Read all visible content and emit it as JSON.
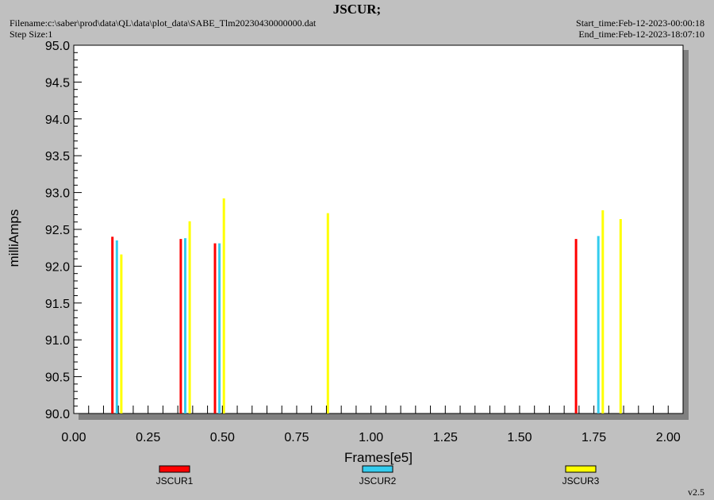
{
  "header": {
    "title": "JSCUR;",
    "filename": "Filename:c:\\saber\\prod\\data\\QL\\data\\plot_data\\SABE_Tlm20230430000000.dat",
    "step_size": "Step Size:1",
    "start_time": "Start_time:Feb-12-2023-00:00:18",
    "end_time": "End_time:Feb-12-2023-18:07:10"
  },
  "version": "v2.5",
  "colors": {
    "background": "#c0c0c0",
    "plot_bg": "#ffffff",
    "shadow": "#808080",
    "JSCUR1": "#ff0000",
    "JSCUR2": "#33ccee",
    "JSCUR3": "#ffff00"
  },
  "chart_data": {
    "type": "bar",
    "title": "JSCUR;",
    "xlabel": "Frames[e5]",
    "ylabel": "milliAmps",
    "xlim": [
      0.0,
      2.05
    ],
    "ylim": [
      90.0,
      95.0
    ],
    "grid": false,
    "legend_position": "bottom",
    "x_ticks": [
      "0.00",
      "0.25",
      "0.50",
      "0.75",
      "1.00",
      "1.25",
      "1.50",
      "1.75",
      "2.00"
    ],
    "y_ticks": [
      "90.0",
      "90.5",
      "91.0",
      "91.5",
      "92.0",
      "92.5",
      "93.0",
      "93.5",
      "94.0",
      "94.5",
      "95.0"
    ],
    "series": [
      {
        "name": "JSCUR1",
        "color": "#ff0000",
        "points": [
          [
            0.13,
            92.4
          ],
          [
            0.36,
            92.37
          ],
          [
            0.475,
            92.31
          ],
          [
            1.69,
            92.37
          ]
        ]
      },
      {
        "name": "JSCUR2",
        "color": "#33ccee",
        "points": [
          [
            0.145,
            92.35
          ],
          [
            0.375,
            92.38
          ],
          [
            0.49,
            92.31
          ],
          [
            1.765,
            92.41
          ]
        ]
      },
      {
        "name": "JSCUR3",
        "color": "#ffff00",
        "points": [
          [
            0.16,
            92.16
          ],
          [
            0.39,
            92.61
          ],
          [
            0.505,
            92.92
          ],
          [
            0.855,
            92.72
          ],
          [
            1.78,
            92.76
          ],
          [
            1.84,
            92.64
          ]
        ]
      }
    ]
  }
}
